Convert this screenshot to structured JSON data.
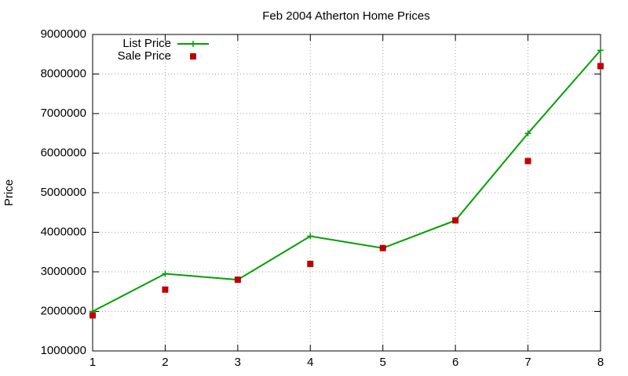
{
  "chart_data": {
    "type": "line",
    "title": "Feb 2004 Atherton Home Prices",
    "y_label": "Price",
    "x": [
      1,
      2,
      3,
      4,
      5,
      6,
      7,
      8
    ],
    "series": [
      {
        "name": "List Price",
        "color": "#00a000",
        "style": "linespoints",
        "values": [
          2000000,
          2950000,
          2800000,
          3900000,
          3600000,
          4300000,
          6500000,
          8600000
        ]
      },
      {
        "name": "Sale Price",
        "color": "#c00000",
        "style": "points",
        "values": [
          1900000,
          2550000,
          2800000,
          3200000,
          3600000,
          4300000,
          5800000,
          8200000
        ]
      }
    ],
    "xlim": [
      1,
      8
    ],
    "xticks": [
      1,
      2,
      3,
      4,
      5,
      6,
      7,
      8
    ],
    "ylim": [
      1000000,
      9000000
    ],
    "yticks": [
      1000000,
      2000000,
      3000000,
      4000000,
      5000000,
      6000000,
      7000000,
      8000000,
      9000000
    ],
    "grid": true,
    "legend": "top-left"
  }
}
